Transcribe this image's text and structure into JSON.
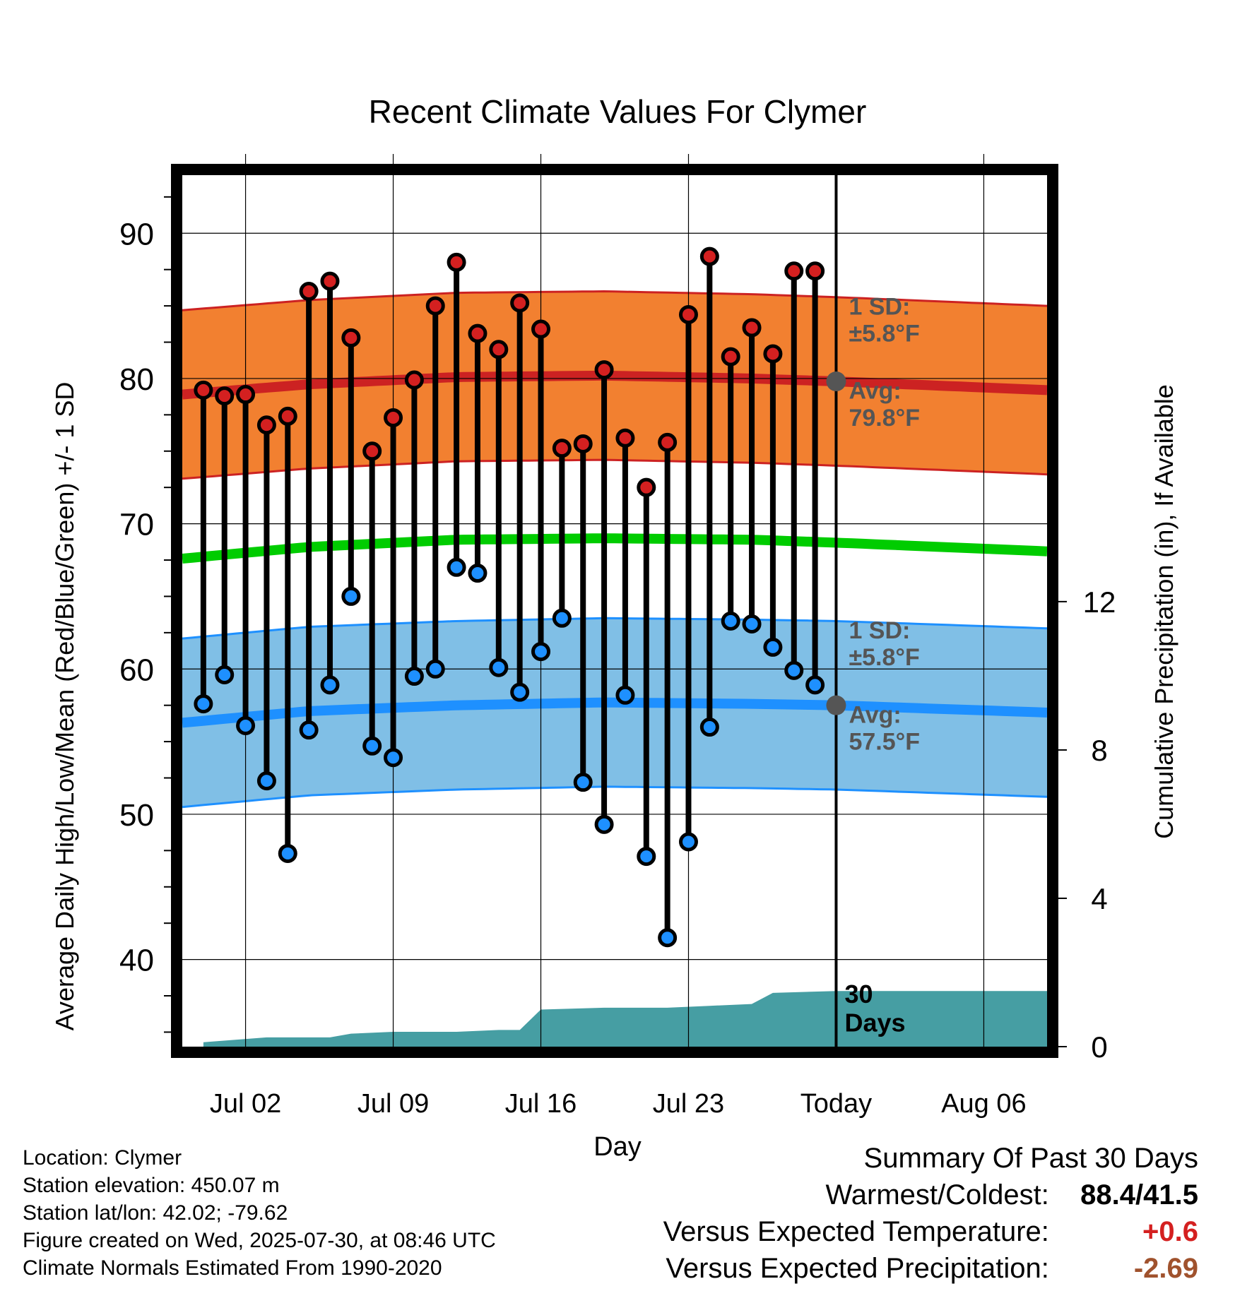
{
  "chart_data": {
    "type": "line",
    "title": "Recent Climate Values For Clymer",
    "xlabel": "Day",
    "ylabel": "Average Daily High/Low/Mean (Red/Blue/Green) +/- 1 SD",
    "y2label": "Cumulative Precipitation (in), If Available",
    "x_tick_labels": [
      "Jul 02",
      "Jul 09",
      "Jul 16",
      "Jul 23",
      "Today",
      "Aug 06"
    ],
    "y_ticks": [
      40,
      50,
      60,
      70,
      80,
      90
    ],
    "y2_ticks": [
      0,
      4,
      8,
      12
    ],
    "x_range": [
      "2025-06-29",
      "2025-08-09"
    ],
    "y_range": [
      34.0,
      94.0
    ],
    "y2_range": [
      0,
      23.5
    ],
    "today_marker": {
      "date": "2025-07-30",
      "label_lines": [
        "30",
        "Days"
      ]
    },
    "series": [
      {
        "name": "Daily High",
        "color": "#d42020",
        "dates": [
          "2025-06-30",
          "2025-07-01",
          "2025-07-02",
          "2025-07-03",
          "2025-07-04",
          "2025-07-05",
          "2025-07-06",
          "2025-07-07",
          "2025-07-08",
          "2025-07-09",
          "2025-07-10",
          "2025-07-11",
          "2025-07-12",
          "2025-07-13",
          "2025-07-14",
          "2025-07-15",
          "2025-07-16",
          "2025-07-17",
          "2025-07-18",
          "2025-07-19",
          "2025-07-20",
          "2025-07-21",
          "2025-07-22",
          "2025-07-23",
          "2025-07-24",
          "2025-07-25",
          "2025-07-26",
          "2025-07-27",
          "2025-07-28",
          "2025-07-29"
        ],
        "values": [
          79.2,
          78.8,
          78.9,
          76.8,
          77.4,
          86.0,
          86.7,
          82.8,
          75.0,
          77.3,
          79.9,
          85.0,
          88.0,
          83.1,
          82.0,
          85.2,
          83.4,
          75.2,
          75.5,
          80.6,
          75.9,
          72.5,
          75.6,
          84.4,
          88.4,
          81.5,
          83.5,
          81.7,
          87.4,
          87.4
        ]
      },
      {
        "name": "Daily Low",
        "color": "#1e90ff",
        "dates": [
          "2025-06-30",
          "2025-07-01",
          "2025-07-02",
          "2025-07-03",
          "2025-07-04",
          "2025-07-05",
          "2025-07-06",
          "2025-07-07",
          "2025-07-08",
          "2025-07-09",
          "2025-07-10",
          "2025-07-11",
          "2025-07-12",
          "2025-07-13",
          "2025-07-14",
          "2025-07-15",
          "2025-07-16",
          "2025-07-17",
          "2025-07-18",
          "2025-07-19",
          "2025-07-20",
          "2025-07-21",
          "2025-07-22",
          "2025-07-23",
          "2025-07-24",
          "2025-07-25",
          "2025-07-26",
          "2025-07-27",
          "2025-07-28",
          "2025-07-29"
        ],
        "values": [
          57.6,
          59.6,
          56.1,
          52.3,
          47.3,
          55.8,
          58.9,
          65.0,
          54.7,
          53.9,
          59.5,
          60.0,
          67.0,
          66.6,
          60.1,
          58.4,
          61.2,
          63.5,
          52.2,
          49.3,
          58.2,
          47.1,
          41.5,
          48.1,
          56.0,
          63.3,
          63.1,
          61.5,
          59.9,
          58.9
        ]
      },
      {
        "name": "Normal High",
        "color": "#cc2222",
        "dates": [
          "2025-06-29",
          "2025-07-05",
          "2025-07-12",
          "2025-07-19",
          "2025-07-26",
          "2025-07-30",
          "2025-08-09"
        ],
        "values": [
          78.9,
          79.6,
          80.1,
          80.2,
          80.0,
          79.8,
          79.2
        ],
        "sd": 5.8
      },
      {
        "name": "Normal Low",
        "color": "#1e90ff",
        "dates": [
          "2025-06-29",
          "2025-07-05",
          "2025-07-12",
          "2025-07-19",
          "2025-07-26",
          "2025-07-30",
          "2025-08-09"
        ],
        "values": [
          56.3,
          57.1,
          57.5,
          57.7,
          57.6,
          57.5,
          57.0
        ],
        "sd": 5.8
      },
      {
        "name": "Normal Mean",
        "color": "#00cc00",
        "dates": [
          "2025-06-29",
          "2025-07-05",
          "2025-07-12",
          "2025-07-19",
          "2025-07-26",
          "2025-07-30",
          "2025-08-09"
        ],
        "values": [
          67.6,
          68.4,
          68.9,
          69.0,
          68.9,
          68.7,
          68.1
        ]
      },
      {
        "name": "Cumulative Precipitation",
        "color": "#469ea3",
        "dates": [
          "2025-06-30",
          "2025-07-03",
          "2025-07-06",
          "2025-07-07",
          "2025-07-09",
          "2025-07-12",
          "2025-07-14",
          "2025-07-15",
          "2025-07-16",
          "2025-07-19",
          "2025-07-22",
          "2025-07-24",
          "2025-07-26",
          "2025-07-27",
          "2025-07-30",
          "2025-08-09"
        ],
        "values": [
          0.12,
          0.25,
          0.25,
          0.35,
          0.4,
          0.4,
          0.45,
          0.45,
          1.0,
          1.05,
          1.05,
          1.1,
          1.15,
          1.45,
          1.5,
          1.5
        ]
      }
    ],
    "annotations": {
      "high_sd_lines": [
        "1 SD:",
        "±5.8°F"
      ],
      "high_avg_lines": [
        "Avg:",
        "79.8°F"
      ],
      "low_sd_lines": [
        "1 SD:",
        "±5.8°F"
      ],
      "low_avg_lines": [
        "Avg:",
        "57.5°F"
      ]
    },
    "colors": {
      "high_band": "#f28030",
      "high_line": "#cc2222",
      "low_band": "#80bfe6",
      "low_line": "#1e90ff",
      "mean_line": "#00cc00",
      "precip": "#469ea3",
      "annotation": "#555555"
    }
  },
  "footer": {
    "location": "Location: Clymer",
    "elevation": "Station elevation: 450.07 m",
    "latlon": "Station lat/lon: 42.02; -79.62",
    "created": "Figure created on Wed, 2025-07-30, at 08:46 UTC",
    "normals": "Climate Normals Estimated From 1990-2020"
  },
  "summary": {
    "title": "Summary Of Past 30 Days",
    "warmest_coldest_label": "Warmest/Coldest:",
    "warmest_coldest_value": "88.4/41.5",
    "temp_label": "Versus Expected Temperature:",
    "temp_value": "+0.6",
    "temp_color": "#d42020",
    "precip_label": "Versus Expected Precipitation:",
    "precip_value": "-2.69",
    "precip_color": "#a0522d"
  }
}
